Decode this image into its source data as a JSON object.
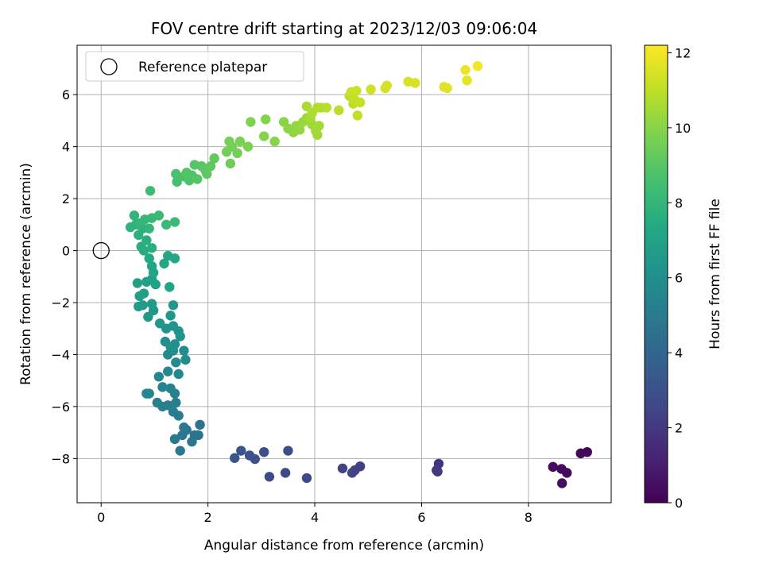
{
  "chart_data": {
    "type": "scatter",
    "title": "FOV centre drift starting at 2023/12/03 09:06:04",
    "xlabel": "Angular distance from reference (arcmin)",
    "ylabel": "Rotation from reference (arcmin)",
    "xlim": [
      -0.45,
      9.55
    ],
    "ylim": [
      -9.7,
      7.9
    ],
    "xticks": [
      0,
      2,
      4,
      6,
      8
    ],
    "yticks": [
      -8,
      -6,
      -4,
      -2,
      0,
      2,
      4,
      6
    ],
    "grid": true,
    "colormap": "viridis",
    "colorbar": {
      "label": "Hours from first FF file",
      "range": [
        0,
        12.2
      ],
      "ticks": [
        0,
        2,
        4,
        6,
        8,
        10,
        12
      ]
    },
    "legend": {
      "position": "top-left",
      "entries": [
        "Reference platepar"
      ]
    },
    "reference_point": {
      "x": 0,
      "y": 0,
      "marker": "hollow-circle",
      "label": "Reference platepar"
    },
    "points": [
      {
        "x": 9.1,
        "y": -7.75,
        "t": 0.1
      },
      {
        "x": 8.98,
        "y": -7.8,
        "t": 0.2
      },
      {
        "x": 8.62,
        "y": -8.4,
        "t": 0.3
      },
      {
        "x": 8.72,
        "y": -8.55,
        "t": 0.35
      },
      {
        "x": 8.46,
        "y": -8.32,
        "t": 0.4
      },
      {
        "x": 8.63,
        "y": -8.95,
        "t": 0.45
      },
      {
        "x": 6.32,
        "y": -8.2,
        "t": 1.8
      },
      {
        "x": 6.3,
        "y": -8.5,
        "t": 1.9
      },
      {
        "x": 6.28,
        "y": -8.45,
        "t": 2.0
      },
      {
        "x": 4.85,
        "y": -8.3,
        "t": 2.2
      },
      {
        "x": 4.75,
        "y": -8.45,
        "t": 2.3
      },
      {
        "x": 4.52,
        "y": -8.38,
        "t": 2.4
      },
      {
        "x": 4.7,
        "y": -8.55,
        "t": 2.45
      },
      {
        "x": 3.85,
        "y": -8.75,
        "t": 2.6
      },
      {
        "x": 3.45,
        "y": -8.55,
        "t": 2.7
      },
      {
        "x": 3.15,
        "y": -8.7,
        "t": 2.8
      },
      {
        "x": 3.5,
        "y": -7.7,
        "t": 2.9
      },
      {
        "x": 3.05,
        "y": -7.75,
        "t": 3.0
      },
      {
        "x": 2.88,
        "y": -8.02,
        "t": 3.05
      },
      {
        "x": 2.78,
        "y": -7.88,
        "t": 3.1
      },
      {
        "x": 2.62,
        "y": -7.7,
        "t": 3.2
      },
      {
        "x": 2.5,
        "y": -7.98,
        "t": 3.25
      },
      {
        "x": 1.85,
        "y": -6.7,
        "t": 4.6
      },
      {
        "x": 1.75,
        "y": -7.1,
        "t": 4.65
      },
      {
        "x": 1.82,
        "y": -7.1,
        "t": 4.7
      },
      {
        "x": 1.7,
        "y": -7.35,
        "t": 4.75
      },
      {
        "x": 1.6,
        "y": -6.9,
        "t": 4.8
      },
      {
        "x": 1.52,
        "y": -7.1,
        "t": 4.85
      },
      {
        "x": 1.48,
        "y": -7.7,
        "t": 4.9
      },
      {
        "x": 1.38,
        "y": -7.25,
        "t": 4.95
      },
      {
        "x": 1.55,
        "y": -6.8,
        "t": 5.0
      },
      {
        "x": 1.45,
        "y": -6.35,
        "t": 5.05
      },
      {
        "x": 1.35,
        "y": -6.2,
        "t": 5.1
      },
      {
        "x": 1.4,
        "y": -5.85,
        "t": 5.15
      },
      {
        "x": 1.25,
        "y": -5.95,
        "t": 5.2
      },
      {
        "x": 1.15,
        "y": -6.0,
        "t": 5.25
      },
      {
        "x": 1.05,
        "y": -5.85,
        "t": 5.3
      },
      {
        "x": 1.38,
        "y": -5.5,
        "t": 5.35
      },
      {
        "x": 1.3,
        "y": -5.3,
        "t": 5.4
      },
      {
        "x": 1.15,
        "y": -5.25,
        "t": 5.45
      },
      {
        "x": 0.9,
        "y": -5.5,
        "t": 5.5
      },
      {
        "x": 0.85,
        "y": -5.5,
        "t": 5.55
      },
      {
        "x": 1.08,
        "y": -4.85,
        "t": 5.6
      },
      {
        "x": 1.25,
        "y": -4.65,
        "t": 5.65
      },
      {
        "x": 1.45,
        "y": -4.75,
        "t": 5.7
      },
      {
        "x": 1.4,
        "y": -4.3,
        "t": 5.75
      },
      {
        "x": 1.25,
        "y": -4.0,
        "t": 5.8
      },
      {
        "x": 1.35,
        "y": -3.85,
        "t": 5.85
      },
      {
        "x": 1.58,
        "y": -4.2,
        "t": 5.9
      },
      {
        "x": 1.55,
        "y": -3.85,
        "t": 5.95
      },
      {
        "x": 1.38,
        "y": -3.6,
        "t": 6.0
      },
      {
        "x": 1.2,
        "y": -3.5,
        "t": 6.05
      },
      {
        "x": 1.3,
        "y": -3.7,
        "t": 6.1
      },
      {
        "x": 1.45,
        "y": -3.1,
        "t": 6.15
      },
      {
        "x": 1.48,
        "y": -3.3,
        "t": 6.2
      },
      {
        "x": 1.35,
        "y": -2.9,
        "t": 6.25
      },
      {
        "x": 1.22,
        "y": -3.0,
        "t": 6.3
      },
      {
        "x": 1.1,
        "y": -2.8,
        "t": 6.35
      },
      {
        "x": 1.3,
        "y": -2.5,
        "t": 6.4
      },
      {
        "x": 1.35,
        "y": -2.1,
        "t": 6.45
      },
      {
        "x": 0.88,
        "y": -2.55,
        "t": 6.5
      },
      {
        "x": 0.98,
        "y": -2.3,
        "t": 6.55
      },
      {
        "x": 0.95,
        "y": -2.05,
        "t": 6.6
      },
      {
        "x": 0.78,
        "y": -2.1,
        "t": 6.65
      },
      {
        "x": 0.7,
        "y": -2.15,
        "t": 6.7
      },
      {
        "x": 0.72,
        "y": -1.75,
        "t": 6.75
      },
      {
        "x": 0.8,
        "y": -1.65,
        "t": 6.8
      },
      {
        "x": 0.68,
        "y": -1.25,
        "t": 6.85
      },
      {
        "x": 0.85,
        "y": -1.2,
        "t": 6.9
      },
      {
        "x": 0.95,
        "y": -1.1,
        "t": 6.95
      },
      {
        "x": 1.02,
        "y": -1.3,
        "t": 7.0
      },
      {
        "x": 1.28,
        "y": -1.4,
        "t": 7.05
      },
      {
        "x": 0.98,
        "y": -0.85,
        "t": 7.1
      },
      {
        "x": 0.95,
        "y": -0.6,
        "t": 7.15
      },
      {
        "x": 1.18,
        "y": -0.5,
        "t": 7.2
      },
      {
        "x": 1.25,
        "y": -0.2,
        "t": 7.25
      },
      {
        "x": 1.38,
        "y": -0.3,
        "t": 7.3
      },
      {
        "x": 0.9,
        "y": -0.3,
        "t": 7.35
      },
      {
        "x": 0.8,
        "y": 0.0,
        "t": 7.5
      },
      {
        "x": 0.75,
        "y": 0.15,
        "t": 7.55
      },
      {
        "x": 0.95,
        "y": 0.1,
        "t": 7.6
      },
      {
        "x": 0.85,
        "y": 0.4,
        "t": 7.65
      },
      {
        "x": 0.7,
        "y": 0.6,
        "t": 7.7
      },
      {
        "x": 0.78,
        "y": 0.85,
        "t": 7.75
      },
      {
        "x": 0.65,
        "y": 1.0,
        "t": 7.8
      },
      {
        "x": 0.55,
        "y": 0.9,
        "t": 7.85
      },
      {
        "x": 0.62,
        "y": 1.35,
        "t": 7.9
      },
      {
        "x": 0.72,
        "y": 1.05,
        "t": 7.95
      },
      {
        "x": 0.9,
        "y": 0.85,
        "t": 8.0
      },
      {
        "x": 0.82,
        "y": 1.2,
        "t": 8.05
      },
      {
        "x": 0.95,
        "y": 1.25,
        "t": 8.1
      },
      {
        "x": 1.08,
        "y": 1.35,
        "t": 8.15
      },
      {
        "x": 1.22,
        "y": 1.0,
        "t": 8.2
      },
      {
        "x": 1.38,
        "y": 1.1,
        "t": 8.25
      },
      {
        "x": 0.92,
        "y": 2.3,
        "t": 8.3
      },
      {
        "x": 1.42,
        "y": 2.65,
        "t": 8.6
      },
      {
        "x": 1.4,
        "y": 2.95,
        "t": 8.65
      },
      {
        "x": 1.55,
        "y": 2.85,
        "t": 8.7
      },
      {
        "x": 1.65,
        "y": 2.7,
        "t": 8.75
      },
      {
        "x": 1.7,
        "y": 2.9,
        "t": 8.8
      },
      {
        "x": 1.6,
        "y": 3.0,
        "t": 8.85
      },
      {
        "x": 1.8,
        "y": 2.75,
        "t": 8.9
      },
      {
        "x": 1.75,
        "y": 3.3,
        "t": 8.95
      },
      {
        "x": 1.88,
        "y": 3.25,
        "t": 9.0
      },
      {
        "x": 1.95,
        "y": 3.1,
        "t": 9.05
      },
      {
        "x": 1.98,
        "y": 2.95,
        "t": 9.1
      },
      {
        "x": 2.05,
        "y": 3.25,
        "t": 9.15
      },
      {
        "x": 2.12,
        "y": 3.55,
        "t": 9.2
      },
      {
        "x": 2.42,
        "y": 3.35,
        "t": 9.5
      },
      {
        "x": 2.35,
        "y": 3.8,
        "t": 9.55
      },
      {
        "x": 2.45,
        "y": 4.0,
        "t": 9.6
      },
      {
        "x": 2.55,
        "y": 3.75,
        "t": 9.65
      },
      {
        "x": 2.4,
        "y": 4.2,
        "t": 9.7
      },
      {
        "x": 2.6,
        "y": 4.2,
        "t": 9.75
      },
      {
        "x": 2.75,
        "y": 4.0,
        "t": 9.8
      },
      {
        "x": 2.8,
        "y": 4.95,
        "t": 9.85
      },
      {
        "x": 3.08,
        "y": 5.05,
        "t": 9.9
      },
      {
        "x": 3.05,
        "y": 4.4,
        "t": 9.95
      },
      {
        "x": 3.25,
        "y": 4.2,
        "t": 10.0
      },
      {
        "x": 3.42,
        "y": 4.95,
        "t": 10.05
      },
      {
        "x": 3.5,
        "y": 4.7,
        "t": 10.1
      },
      {
        "x": 3.6,
        "y": 4.55,
        "t": 10.15
      },
      {
        "x": 3.65,
        "y": 4.8,
        "t": 10.2
      },
      {
        "x": 3.72,
        "y": 4.65,
        "t": 10.25
      },
      {
        "x": 3.78,
        "y": 4.95,
        "t": 10.3
      },
      {
        "x": 3.85,
        "y": 5.1,
        "t": 10.35
      },
      {
        "x": 3.95,
        "y": 4.85,
        "t": 10.4
      },
      {
        "x": 4.02,
        "y": 4.6,
        "t": 10.45
      },
      {
        "x": 4.05,
        "y": 4.45,
        "t": 10.5
      },
      {
        "x": 4.08,
        "y": 4.8,
        "t": 10.55
      },
      {
        "x": 3.92,
        "y": 5.1,
        "t": 10.6
      },
      {
        "x": 3.85,
        "y": 5.55,
        "t": 10.65
      },
      {
        "x": 3.95,
        "y": 5.3,
        "t": 10.7
      },
      {
        "x": 4.05,
        "y": 5.5,
        "t": 10.75
      },
      {
        "x": 4.12,
        "y": 5.5,
        "t": 10.8
      },
      {
        "x": 4.22,
        "y": 5.5,
        "t": 10.85
      },
      {
        "x": 4.45,
        "y": 5.4,
        "t": 10.9
      },
      {
        "x": 4.65,
        "y": 5.95,
        "t": 10.95
      },
      {
        "x": 4.72,
        "y": 5.65,
        "t": 11.0
      },
      {
        "x": 4.8,
        "y": 5.2,
        "t": 11.05
      },
      {
        "x": 4.75,
        "y": 5.8,
        "t": 11.1
      },
      {
        "x": 4.85,
        "y": 5.7,
        "t": 11.15
      },
      {
        "x": 4.68,
        "y": 6.1,
        "t": 11.2
      },
      {
        "x": 4.78,
        "y": 6.15,
        "t": 11.25
      },
      {
        "x": 5.05,
        "y": 6.2,
        "t": 11.3
      },
      {
        "x": 5.32,
        "y": 6.25,
        "t": 11.35
      },
      {
        "x": 5.35,
        "y": 6.35,
        "t": 11.4
      },
      {
        "x": 5.75,
        "y": 6.5,
        "t": 11.45
      },
      {
        "x": 5.88,
        "y": 6.45,
        "t": 11.5
      },
      {
        "x": 6.42,
        "y": 6.3,
        "t": 11.6
      },
      {
        "x": 6.48,
        "y": 6.25,
        "t": 11.65
      },
      {
        "x": 6.85,
        "y": 6.55,
        "t": 11.75
      },
      {
        "x": 6.82,
        "y": 6.95,
        "t": 11.85
      },
      {
        "x": 7.05,
        "y": 7.1,
        "t": 12.0
      }
    ]
  }
}
